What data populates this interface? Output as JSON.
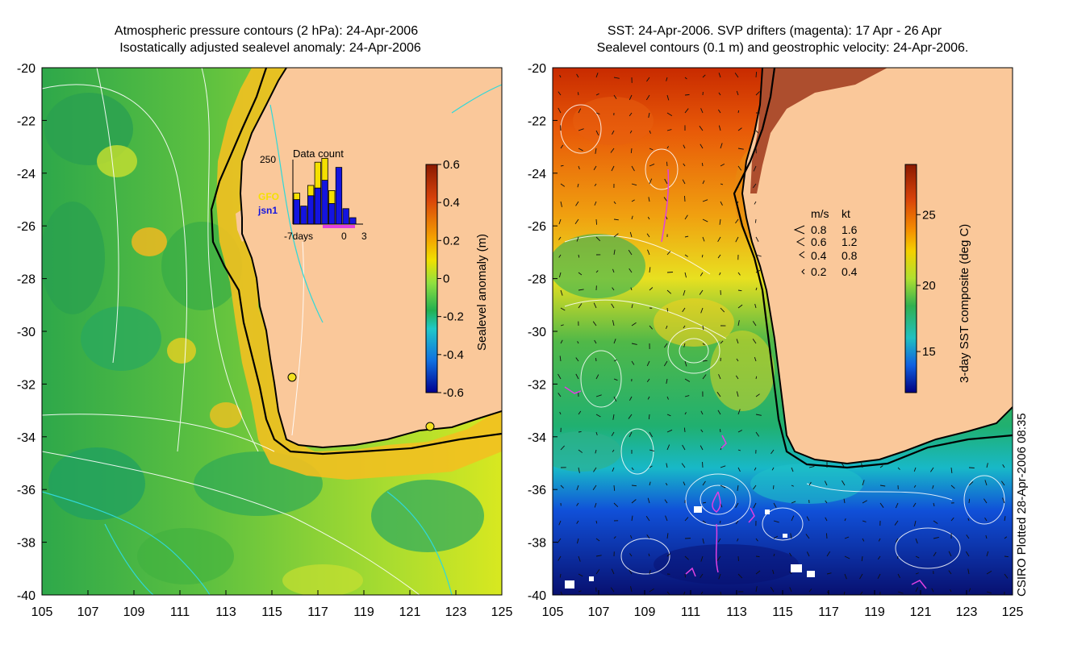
{
  "left_panel": {
    "title_line1": "Atmospheric pressure contours (2 hPa): 24-Apr-2006",
    "title_line2": "Isostatically adjusted sealevel anomaly: 24-Apr-2006",
    "x_ticks": [
      "105",
      "107",
      "109",
      "111",
      "113",
      "115",
      "117",
      "119",
      "121",
      "123",
      "125"
    ],
    "y_ticks": [
      "-20",
      "-22",
      "-24",
      "-26",
      "-28",
      "-30",
      "-32",
      "-34",
      "-36",
      "-38",
      "-40"
    ],
    "colorbar": {
      "label": "Sealevel anomaly (m)",
      "ticks": [
        "0.6",
        "0.4",
        "0.2",
        "0",
        "-0.2",
        "-0.4",
        "-0.6"
      ],
      "colors": [
        "#8b1a00",
        "#d8420a",
        "#f4a000",
        "#f0e000",
        "#90e040",
        "#22b050",
        "#20c8c8",
        "#1070e0",
        "#000090"
      ]
    },
    "inset": {
      "title": "Data count",
      "max_label": "250",
      "series": [
        {
          "name": "GFO",
          "color": "#f5e000",
          "values": [
            120,
            60,
            150,
            240,
            255,
            130,
            0,
            0
          ]
        },
        {
          "name": "jsn1",
          "color": "#1414e0",
          "values": [
            95,
            70,
            110,
            140,
            170,
            80,
            220,
            60,
            25
          ]
        }
      ],
      "x_labels": [
        "-7days",
        "0",
        "3"
      ]
    }
  },
  "right_panel": {
    "title_line1": "SST: 24-Apr-2006. SVP drifters (magenta): 17 Apr - 26 Apr",
    "title_line2": "Sealevel contours (0.1 m) and geostrophic velocity: 24-Apr-2006.",
    "x_ticks": [
      "105",
      "107",
      "109",
      "111",
      "113",
      "115",
      "117",
      "119",
      "121",
      "123",
      "125"
    ],
    "y_ticks": [
      "-20",
      "-22",
      "-24",
      "-26",
      "-28",
      "-30",
      "-32",
      "-34",
      "-36",
      "-38",
      "-40"
    ],
    "colorbar": {
      "label": "3-day SST composite (deg C)",
      "ticks": [
        "25",
        "20",
        "15"
      ],
      "colors": [
        "#8b1a00",
        "#d8420a",
        "#f48a00",
        "#f4d000",
        "#b0e030",
        "#30b050",
        "#20c0c0",
        "#1060e0",
        "#000080"
      ]
    },
    "velocity_legend": {
      "header_ms": "m/s",
      "header_kt": "kt",
      "rows": [
        {
          "ms": "0.8",
          "kt": "1.6"
        },
        {
          "ms": "0.6",
          "kt": "1.2"
        },
        {
          "ms": "0.4",
          "kt": "0.8"
        },
        {
          "ms": "0.2",
          "kt": "0.4"
        }
      ]
    }
  },
  "credit": "CSIRO Plotted 28-Apr-2006 08:35",
  "land_color": "#fac89a"
}
